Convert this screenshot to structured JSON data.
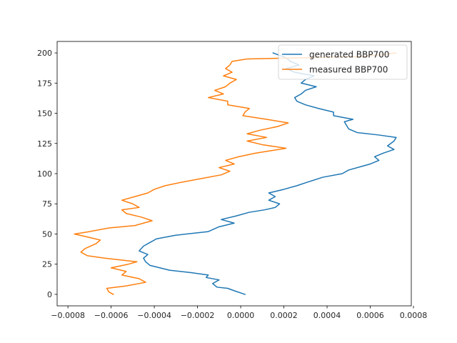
{
  "chart_data": {
    "type": "line",
    "orientation": "profile",
    "title": "",
    "xlabel": "",
    "ylabel": "",
    "xlim": [
      -0.00085,
      0.00079
    ],
    "ylim": [
      209.5,
      -9.5
    ],
    "y_inverted": true,
    "x_ticks": [
      -0.0008,
      -0.0006,
      -0.0004,
      -0.0002,
      0.0,
      0.0002,
      0.0004,
      0.0006,
      0.0008
    ],
    "x_tick_labels": [
      "−0.0008",
      "−0.0006",
      "−0.0004",
      "−0.0002",
      "0.0000",
      "0.0002",
      "0.0004",
      "0.0006",
      "0.0008"
    ],
    "y_ticks": [
      0,
      25,
      50,
      75,
      100,
      125,
      150,
      175,
      200
    ],
    "y_tick_labels": [
      "0",
      "25",
      "50",
      "75",
      "100",
      "125",
      "150",
      "175",
      "200"
    ],
    "grid": false,
    "legend": {
      "placement": "top-right"
    },
    "series": [
      {
        "name": "generated BBP700",
        "color": "#1f77b4",
        "points": [
          [
            2e-05,
            0
          ],
          [
            -3e-05,
            3
          ],
          [
            -6e-05,
            5
          ],
          [
            -0.00011,
            6
          ],
          [
            -0.00013,
            9
          ],
          [
            -0.0001,
            12
          ],
          [
            -0.00016,
            14
          ],
          [
            -0.00015,
            16
          ],
          [
            -0.00023,
            18
          ],
          [
            -0.00033,
            20
          ],
          [
            -0.00042,
            24
          ],
          [
            -0.00044,
            27
          ],
          [
            -0.00045,
            30
          ],
          [
            -0.00043,
            33
          ],
          [
            -0.00047,
            36
          ],
          [
            -0.00045,
            40
          ],
          [
            -0.00042,
            43
          ],
          [
            -0.00039,
            46
          ],
          [
            -0.0003,
            49
          ],
          [
            -0.00015,
            52
          ],
          [
            -0.0001,
            56
          ],
          [
            -3e-05,
            59
          ],
          [
            -9e-05,
            62
          ],
          [
            -2e-05,
            65
          ],
          [
            4e-05,
            68
          ],
          [
            0.00011,
            70
          ],
          [
            0.00016,
            72
          ],
          [
            0.00018,
            75
          ],
          [
            0.00013,
            78
          ],
          [
            0.00016,
            81
          ],
          [
            0.00013,
            84
          ],
          [
            0.0002,
            87
          ],
          [
            0.00026,
            90
          ],
          [
            0.00031,
            93
          ],
          [
            0.00038,
            97
          ],
          [
            0.00047,
            100
          ],
          [
            0.0005,
            103
          ],
          [
            0.00056,
            106
          ],
          [
            0.0006,
            108
          ],
          [
            0.00064,
            111
          ],
          [
            0.00062,
            114
          ],
          [
            0.00066,
            117
          ],
          [
            0.00071,
            120
          ],
          [
            0.00068,
            123
          ],
          [
            0.00071,
            127
          ],
          [
            0.00072,
            130
          ],
          [
            0.00064,
            132
          ],
          [
            0.00054,
            134
          ],
          [
            0.0005,
            137
          ],
          [
            0.00049,
            140
          ],
          [
            0.00048,
            143
          ],
          [
            0.00052,
            145
          ],
          [
            0.00043,
            148
          ],
          [
            0.00043,
            151
          ],
          [
            0.00036,
            154
          ],
          [
            0.0003,
            157
          ],
          [
            0.00026,
            160
          ],
          [
            0.00025,
            163
          ],
          [
            0.00028,
            166
          ],
          [
            0.0003,
            169
          ],
          [
            0.00035,
            172
          ],
          [
            0.00028,
            175
          ],
          [
            0.0003,
            178
          ],
          [
            0.00034,
            181
          ],
          [
            0.00025,
            184
          ],
          [
            0.00021,
            187
          ],
          [
            0.00027,
            190
          ],
          [
            0.00023,
            193
          ],
          [
            0.00021,
            196
          ],
          [
            0.00018,
            198
          ],
          [
            0.00015,
            200
          ]
        ]
      },
      {
        "name": "measured BBP700",
        "color": "#ff7f0e",
        "points": [
          [
            -0.00059,
            0
          ],
          [
            -0.00061,
            2
          ],
          [
            -0.00062,
            5
          ],
          [
            -0.00053,
            7
          ],
          [
            -0.00044,
            10
          ],
          [
            -0.00047,
            13
          ],
          [
            -0.00055,
            16
          ],
          [
            -0.00053,
            19
          ],
          [
            -0.0006,
            22
          ],
          [
            -0.00052,
            25
          ],
          [
            -0.00048,
            27
          ],
          [
            -0.00063,
            30
          ],
          [
            -0.00071,
            32
          ],
          [
            -0.00074,
            35
          ],
          [
            -0.00072,
            38
          ],
          [
            -0.00067,
            42
          ],
          [
            -0.00065,
            45
          ],
          [
            -0.00072,
            48
          ],
          [
            -0.00077,
            50
          ],
          [
            -0.0007,
            52
          ],
          [
            -0.00061,
            55
          ],
          [
            -0.00049,
            57
          ],
          [
            -0.00045,
            59
          ],
          [
            -0.00041,
            61
          ],
          [
            -0.00046,
            64
          ],
          [
            -0.00053,
            67
          ],
          [
            -0.00055,
            70
          ],
          [
            -0.00047,
            72
          ],
          [
            -0.0005,
            75
          ],
          [
            -0.00055,
            78
          ],
          [
            -0.00049,
            81
          ],
          [
            -0.00043,
            84
          ],
          [
            -0.0004,
            87
          ],
          [
            -0.00035,
            90
          ],
          [
            -0.00027,
            93
          ],
          [
            -0.00018,
            96
          ],
          [
            -9e-05,
            99
          ],
          [
            -5e-05,
            102
          ],
          [
            -0.0001,
            105
          ],
          [
            -3e-05,
            108
          ],
          [
            -7e-05,
            111
          ],
          [
            -1e-05,
            114
          ],
          [
            7e-05,
            117
          ],
          [
            0.00014,
            119
          ],
          [
            0.00021,
            121
          ],
          [
            0.0001,
            124
          ],
          [
            3e-05,
            127
          ],
          [
            0.00012,
            130
          ],
          [
            3e-05,
            133
          ],
          [
            9e-05,
            136
          ],
          [
            0.00017,
            139
          ],
          [
            0.00022,
            142
          ],
          [
            0.00012,
            145
          ],
          [
            1e-05,
            148
          ],
          [
            2e-05,
            151
          ],
          [
            4e-05,
            154
          ],
          [
            -6e-05,
            157
          ],
          [
            -6e-05,
            160
          ],
          [
            -0.00015,
            163
          ],
          [
            -8e-05,
            166
          ],
          [
            -0.00012,
            169
          ],
          [
            -7e-05,
            172
          ],
          [
            -5e-05,
            175
          ],
          [
            -2e-05,
            178
          ],
          [
            -8e-05,
            181
          ],
          [
            -4e-05,
            184
          ],
          [
            -7e-05,
            187
          ],
          [
            -5e-05,
            190
          ],
          [
            -4e-05,
            193
          ],
          [
            3e-05,
            195
          ],
          [
            0.0003,
            196
          ],
          [
            0.00055,
            197
          ],
          [
            0.00063,
            198
          ],
          [
            0.00072,
            200
          ]
        ]
      }
    ]
  }
}
